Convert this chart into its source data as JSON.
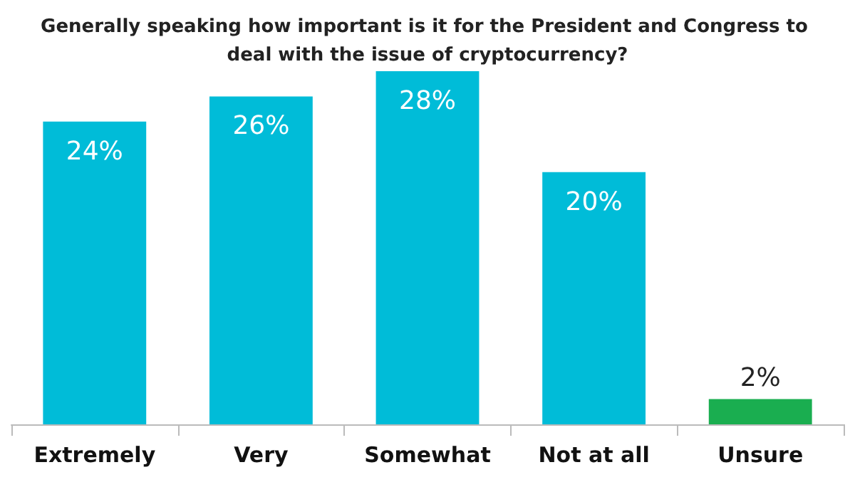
{
  "chart_data": {
    "type": "bar",
    "title": "Generally speaking how important is it for the President and Congress to deal with the issue of cryptocurrency?",
    "categories": [
      "Extremely",
      "Very",
      "Somewhat",
      "Not at all",
      "Unsure"
    ],
    "values": [
      24,
      26,
      28,
      20,
      2
    ],
    "colors": [
      "#00bcd8",
      "#00bcd8",
      "#00bcd8",
      "#00bcd8",
      "#1aae50"
    ],
    "value_labels": [
      "24%",
      "26%",
      "28%",
      "20%",
      "2%"
    ]
  }
}
